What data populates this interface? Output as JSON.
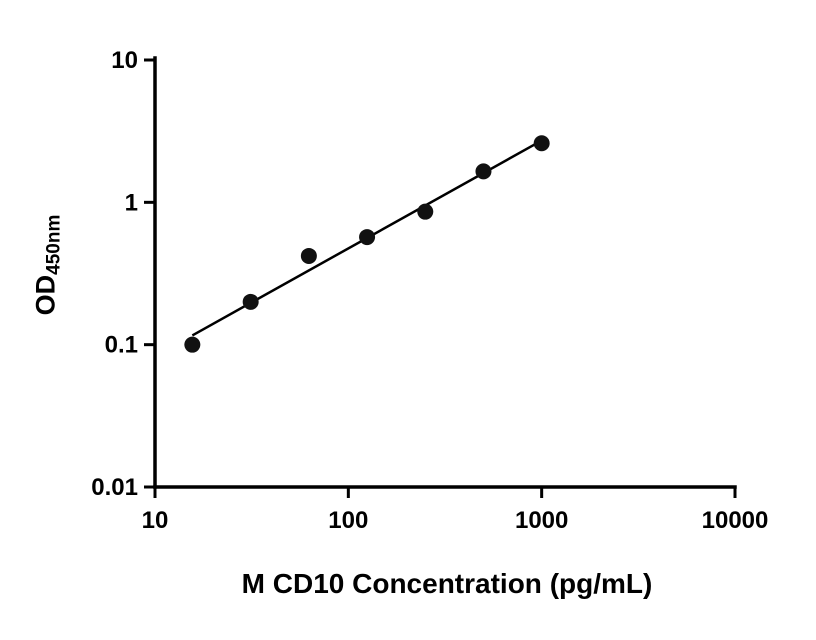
{
  "chart_data": {
    "type": "scatter",
    "title": "",
    "xlabel": "M CD10 Concentration (pg/mL)",
    "ylabel_main": "OD",
    "ylabel_sub": "450nm",
    "x_scale": "log",
    "y_scale": "log",
    "xlim": [
      10,
      10000
    ],
    "ylim": [
      0.01,
      10
    ],
    "grid": false,
    "legend": "none",
    "x_ticks": [
      {
        "value": 10,
        "label": "10"
      },
      {
        "value": 100,
        "label": "100"
      },
      {
        "value": 1000,
        "label": "1000"
      },
      {
        "value": 10000,
        "label": "10000"
      }
    ],
    "y_ticks": [
      {
        "value": 0.01,
        "label": "0.01"
      },
      {
        "value": 0.1,
        "label": "0.1"
      },
      {
        "value": 1,
        "label": "1"
      },
      {
        "value": 10,
        "label": "10"
      }
    ],
    "points": {
      "x": [
        15.6,
        31.25,
        62.5,
        125,
        250,
        500,
        1000
      ],
      "y": [
        0.1,
        0.2,
        0.42,
        0.57,
        0.86,
        1.65,
        2.6
      ]
    },
    "trend_line": true,
    "point_color": "#111111",
    "line_color": "#000000",
    "axis_color": "#000000",
    "background_color": "#ffffff"
  }
}
